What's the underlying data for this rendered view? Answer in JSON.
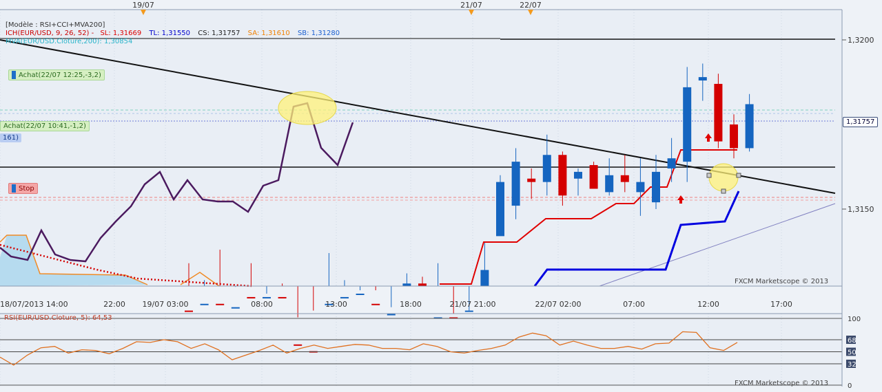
{
  "chart_data": [
    {
      "type": "candlestick",
      "instrument": "EUR/USD",
      "header": {
        "model": "[Modèle : RSI+CCI+MVA200]",
        "ichimoku": "ICH(EUR/USD, 9, 26, 52) -",
        "sl": "SL: 1,31669",
        "tl": "TL: 1,31550",
        "cs": "CS: 1,31757",
        "sa": "SA: 1,31610",
        "sb": "SB: 1,31280",
        "mva": "MVA(EUR/USD.Cloture,200): 1,30854"
      },
      "date_markers": [
        "19/07",
        "21/07",
        "22/07"
      ],
      "x_ticks": [
        "18/07/2013 14:00",
        "22:00",
        "19/07 03:00",
        "08:00",
        "13:00",
        "18:00",
        "21/07 21:00",
        "22/07 02:00",
        "07:00",
        "12:00",
        "17:00"
      ],
      "y_ticks": [
        "1,3200",
        "1,3150"
      ],
      "ylim": [
        1.3103,
        1.3218
      ],
      "current_price": "1,31757",
      "orders": {
        "buy1": "Achat(22/07 12:25,-3,2)",
        "buy2": "Achat(22/07 10:41,-1,2)",
        "partial": "161)",
        "stop": "Stop"
      },
      "candles": [
        {
          "o": 1.312,
          "h": 1.3134,
          "l": 1.3105,
          "c": 1.3105
        },
        {
          "o": 1.3119,
          "h": 1.3129,
          "l": 1.3119,
          "c": 1.3122
        },
        {
          "o": 1.3122,
          "h": 1.3138,
          "l": 1.3105,
          "c": 1.312
        },
        {
          "o": 1.3117,
          "h": 1.3127,
          "l": 1.311,
          "c": 1.3121
        },
        {
          "o": 1.3124,
          "h": 1.3134,
          "l": 1.3108,
          "c": 1.3117
        },
        {
          "o": 1.3119,
          "h": 1.3125,
          "l": 1.311,
          "c": 1.3124
        },
        {
          "o": 1.3124,
          "h": 1.3128,
          "l": 1.3103,
          "c": 1.3106
        },
        {
          "o": 1.311,
          "h": 1.3118,
          "l": 1.3103,
          "c": 1.3105
        },
        {
          "o": 1.3108,
          "h": 1.312,
          "l": 1.3103,
          "c": 1.3106
        },
        {
          "o": 1.3106,
          "h": 1.3137,
          "l": 1.3105,
          "c": 1.3122
        },
        {
          "o": 1.3121,
          "h": 1.3129,
          "l": 1.3115,
          "c": 1.3124
        },
        {
          "o": 1.3124,
          "h": 1.3126,
          "l": 1.312,
          "c": 1.3125
        },
        {
          "o": 1.3122,
          "h": 1.3126,
          "l": 1.3118,
          "c": 1.3119
        },
        {
          "o": 1.3118,
          "h": 1.3121,
          "l": 1.311,
          "c": 1.3119
        },
        {
          "o": 1.3119,
          "h": 1.3131,
          "l": 1.3118,
          "c": 1.3128
        },
        {
          "o": 1.3128,
          "h": 1.313,
          "l": 1.3115,
          "c": 1.3118
        },
        {
          "o": 1.3118,
          "h": 1.3134,
          "l": 1.3112,
          "c": 1.3118
        },
        {
          "o": 1.3118,
          "h": 1.3119,
          "l": 1.311,
          "c": 1.3114
        },
        {
          "o": 1.3116,
          "h": 1.312,
          "l": 1.3112,
          "c": 1.312
        },
        {
          "o": 1.312,
          "h": 1.314,
          "l": 1.3114,
          "c": 1.3132
        },
        {
          "o": 1.3142,
          "h": 1.316,
          "l": 1.3143,
          "c": 1.3158
        },
        {
          "o": 1.3151,
          "h": 1.3168,
          "l": 1.3147,
          "c": 1.3164
        },
        {
          "o": 1.3159,
          "h": 1.3162,
          "l": 1.3153,
          "c": 1.3158
        },
        {
          "o": 1.3158,
          "h": 1.3172,
          "l": 1.3154,
          "c": 1.3166
        },
        {
          "o": 1.3166,
          "h": 1.3167,
          "l": 1.3151,
          "c": 1.3154
        },
        {
          "o": 1.3159,
          "h": 1.3162,
          "l": 1.3154,
          "c": 1.3161
        },
        {
          "o": 1.3163,
          "h": 1.3164,
          "l": 1.3156,
          "c": 1.3156
        },
        {
          "o": 1.3155,
          "h": 1.3165,
          "l": 1.3154,
          "c": 1.316
        },
        {
          "o": 1.316,
          "h": 1.3166,
          "l": 1.3155,
          "c": 1.3158
        },
        {
          "o": 1.3155,
          "h": 1.3165,
          "l": 1.3148,
          "c": 1.3158
        },
        {
          "o": 1.3152,
          "h": 1.3166,
          "l": 1.315,
          "c": 1.3161
        },
        {
          "o": 1.3162,
          "h": 1.3171,
          "l": 1.3158,
          "c": 1.3165
        },
        {
          "o": 1.3164,
          "h": 1.3192,
          "l": 1.3158,
          "c": 1.3186
        },
        {
          "o": 1.3188,
          "h": 1.3193,
          "l": 1.3182,
          "c": 1.3189
        },
        {
          "o": 1.3187,
          "h": 1.319,
          "l": 1.3168,
          "c": 1.317
        },
        {
          "o": 1.3175,
          "h": 1.3178,
          "l": 1.3165,
          "c": 1.3168
        },
        {
          "o": 1.3168,
          "h": 1.3184,
          "l": 1.3167,
          "c": 1.3181
        }
      ],
      "ichimoku_lines": {
        "tenkan_red": [
          null,
          null,
          null,
          null,
          null,
          null,
          null,
          null,
          null,
          null,
          null,
          null,
          null,
          null,
          null,
          null,
          null,
          null,
          1.311,
          1.3113,
          1.3122,
          1.313,
          1.3138,
          1.3146,
          1.3146,
          1.3146,
          1.3146,
          1.315,
          1.3152,
          1.3153,
          1.3155,
          1.3158,
          1.317,
          1.317,
          1.317,
          1.317,
          1.317
        ],
        "kijun_blue": [
          null,
          null,
          null,
          null,
          null,
          null,
          null,
          null,
          null,
          null,
          null,
          null,
          null,
          null,
          null,
          null,
          null,
          null,
          null,
          null,
          null,
          null,
          1.311,
          1.3115,
          1.3115,
          1.3115,
          1.3115,
          1.3115,
          1.3115,
          1.3115,
          1.3115,
          1.3115,
          1.3142,
          1.3142,
          1.3142,
          1.3142,
          1.3152
        ]
      },
      "chikou_purple": [
        1.3125,
        1.3122,
        1.3122,
        1.3131,
        1.3122,
        1.312,
        1.3115,
        1.3126,
        1.3136,
        1.315,
        1.3154,
        1.3146,
        1.3152,
        1.3145,
        1.3141,
        1.3141,
        1.3138,
        1.3146,
        1.3148,
        1.318,
        1.318,
        1.318,
        1.3158,
        1.3155,
        1.3162
      ],
      "trendlines": [
        "black-descending",
        "horizontal-support",
        "horizontal-resistance",
        "ascending-purple"
      ],
      "watermark": "FXCM Marketscope © 2013"
    },
    {
      "type": "line",
      "title": "RSI(EUR/USD.Cloture, 5): 64,53",
      "y_ticks": [
        "100",
        "68",
        "50",
        "32",
        "0"
      ],
      "ylim": [
        0,
        100
      ],
      "series": [
        {
          "values": [
            42,
            30,
            45,
            56,
            58,
            48,
            53,
            52,
            47,
            55,
            65,
            64,
            68,
            65,
            55,
            62,
            53,
            38,
            45,
            52,
            60,
            48,
            55,
            60,
            55,
            58,
            61,
            60,
            55,
            55,
            53,
            62,
            58,
            50,
            48,
            52,
            55,
            60,
            72,
            78,
            74,
            60,
            66,
            60,
            55,
            55,
            58,
            54,
            62,
            63,
            80,
            79,
            56,
            52,
            64
          ]
        }
      ],
      "watermark": "FXCM Marketscope © 2013"
    }
  ]
}
